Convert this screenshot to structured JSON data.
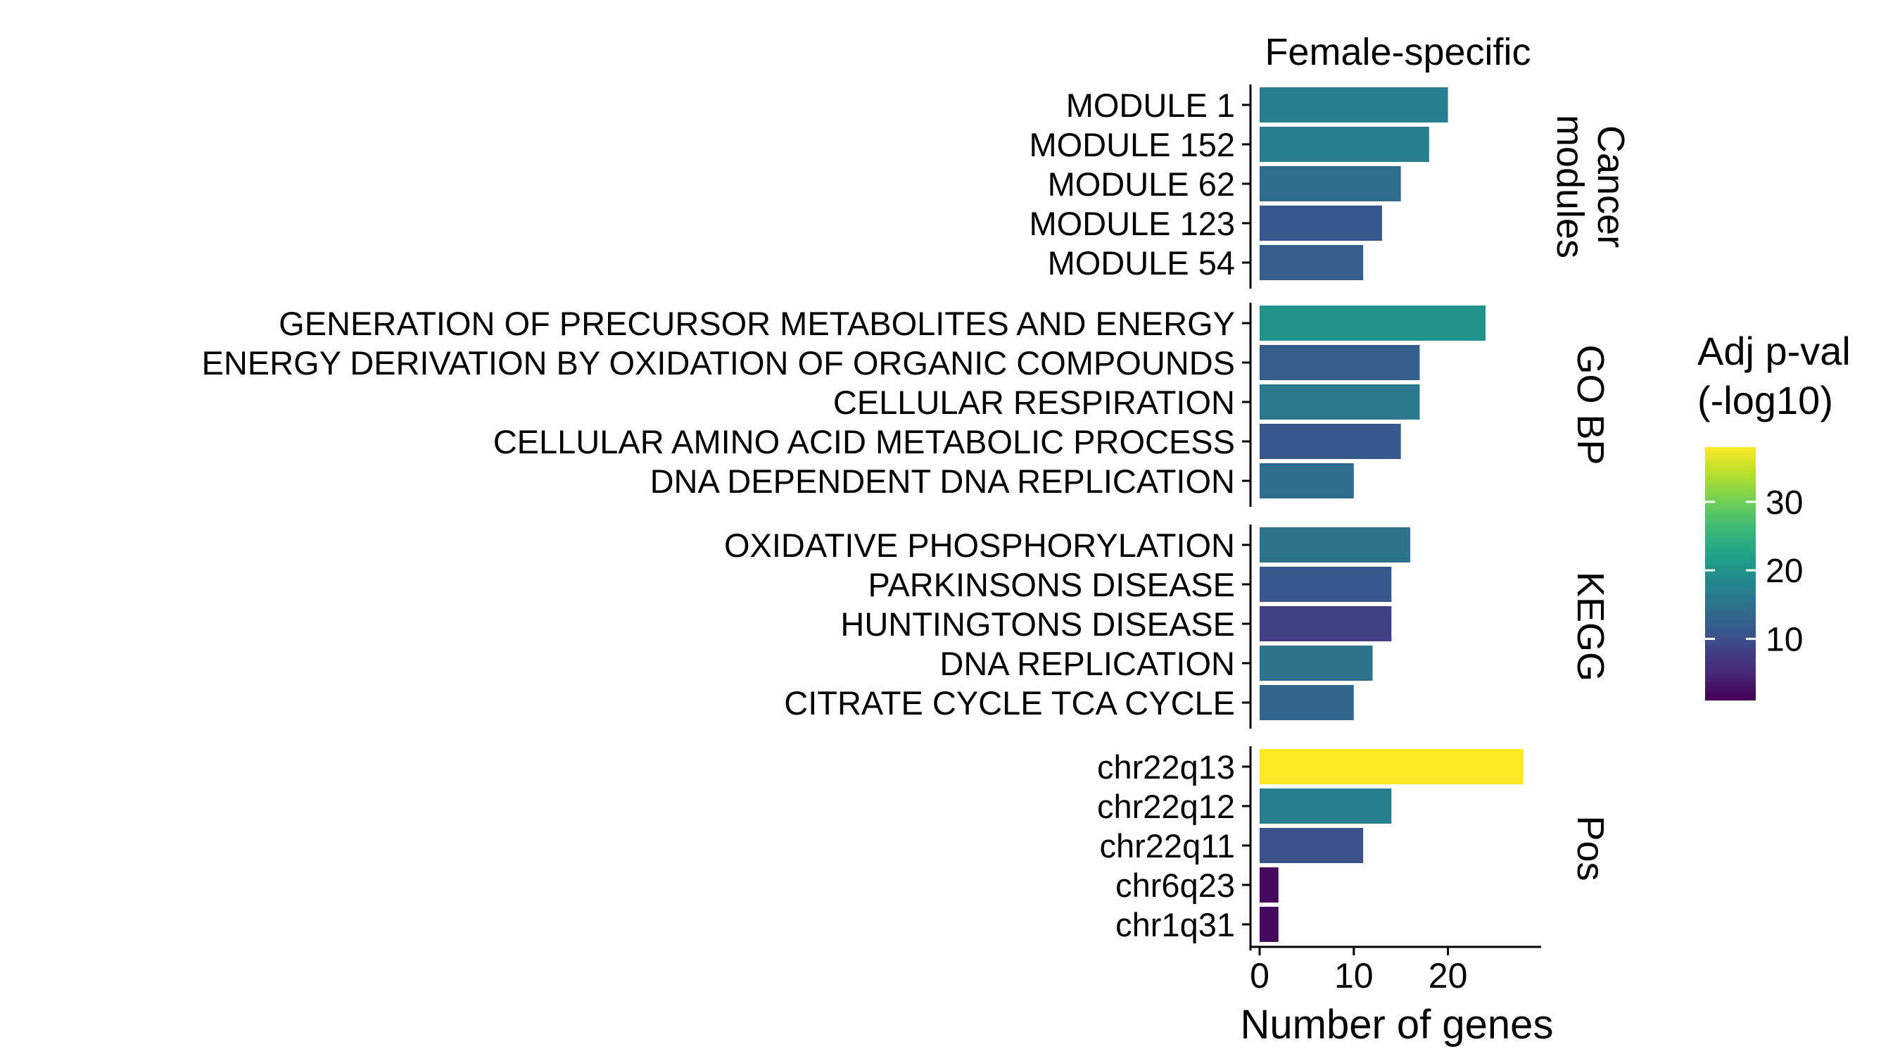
{
  "chart_data": {
    "type": "bar",
    "orientation": "horizontal",
    "title": "Female-specific",
    "xlabel": "Number of genes",
    "ylabel": "",
    "xlim": [
      0,
      29
    ],
    "x_ticks": [
      0,
      10,
      20
    ],
    "grid": false,
    "panels": [
      {
        "name": "Cancer\nmodules",
        "bars": [
          {
            "label": "MODULE 1",
            "value": 20,
            "color_value": 17
          },
          {
            "label": "MODULE 152",
            "value": 18,
            "color_value": 17
          },
          {
            "label": "MODULE 62",
            "value": 15,
            "color_value": 14
          },
          {
            "label": "MODULE 123",
            "value": 13,
            "color_value": 11
          },
          {
            "label": "MODULE 54",
            "value": 11,
            "color_value": 12
          }
        ]
      },
      {
        "name": "GO BP",
        "bars": [
          {
            "label": "GENERATION OF PRECURSOR METABOLITES AND ENERGY",
            "value": 24,
            "color_value": 20
          },
          {
            "label": "ENERGY DERIVATION BY OXIDATION OF ORGANIC COMPOUNDS",
            "value": 17,
            "color_value": 12
          },
          {
            "label": "CELLULAR RESPIRATION",
            "value": 17,
            "color_value": 16
          },
          {
            "label": "CELLULAR AMINO ACID METABOLIC PROCESS",
            "value": 15,
            "color_value": 11
          },
          {
            "label": "DNA DEPENDENT DNA REPLICATION",
            "value": 10,
            "color_value": 14
          }
        ]
      },
      {
        "name": "KEGG",
        "bars": [
          {
            "label": "OXIDATIVE PHOSPHORYLATION",
            "value": 16,
            "color_value": 15
          },
          {
            "label": "PARKINSONS DISEASE",
            "value": 14,
            "color_value": 11
          },
          {
            "label": "HUNTINGTONS DISEASE",
            "value": 14,
            "color_value": 8
          },
          {
            "label": "DNA REPLICATION",
            "value": 12,
            "color_value": 15
          },
          {
            "label": "CITRATE CYCLE TCA CYCLE",
            "value": 10,
            "color_value": 13
          }
        ]
      },
      {
        "name": "Pos",
        "bars": [
          {
            "label": "chr22q13",
            "value": 28,
            "color_value": 38
          },
          {
            "label": "chr22q12",
            "value": 14,
            "color_value": 17
          },
          {
            "label": "chr22q11",
            "value": 11,
            "color_value": 10
          },
          {
            "label": "chr6q23",
            "value": 2,
            "color_value": 2
          },
          {
            "label": "chr1q31",
            "value": 2,
            "color_value": 2
          }
        ]
      }
    ],
    "legend": {
      "title": "Adj p-val\n(-log10)",
      "placement": "right",
      "palette": "viridis",
      "range": [
        1,
        38
      ],
      "ticks": [
        10,
        20,
        30
      ]
    }
  }
}
